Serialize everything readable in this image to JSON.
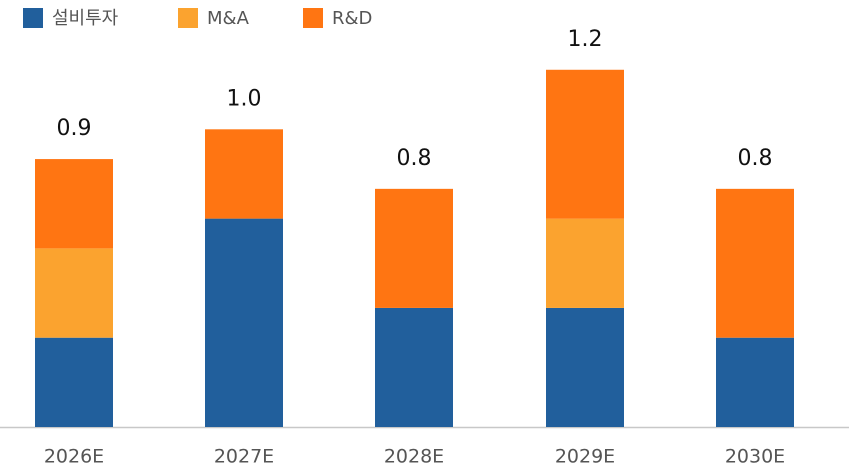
{
  "chart_data": {
    "type": "stacked_bar",
    "categories": [
      "2026E",
      "2027E",
      "2028E",
      "2029E",
      "2030E"
    ],
    "series": [
      {
        "name": "설비투자",
        "color": "#215f9c",
        "values": [
          0.3,
          0.7,
          0.4,
          0.4,
          0.3
        ]
      },
      {
        "name": "M&A",
        "color": "#fba32f",
        "values": [
          0.3,
          null,
          null,
          0.3,
          null
        ]
      },
      {
        "name": "R&D",
        "color": "#ff7512",
        "values": [
          0.3,
          0.3,
          0.4,
          0.5,
          0.5
        ]
      }
    ],
    "totals": [
      0.9,
      1,
      0.8,
      1.2,
      0.8
    ],
    "total_labels": [
      "0.9",
      "1.0",
      "0.8",
      "1.2",
      "0.8"
    ],
    "ylim": [
      0,
      1.3
    ]
  }
}
